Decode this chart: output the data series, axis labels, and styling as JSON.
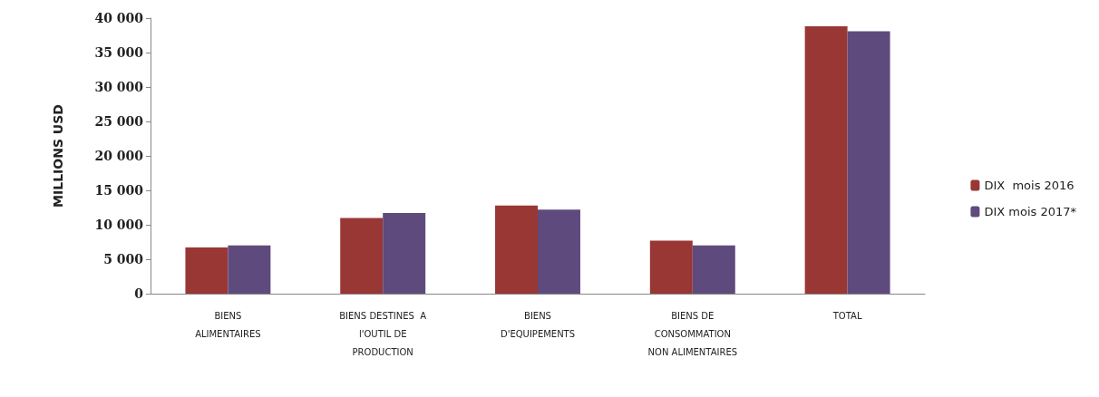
{
  "chart_data": {
    "type": "bar",
    "ylabel": "MILLIONS USD",
    "categories": [
      "BIENS\nALIMENTAIRES",
      "BIENS DESTINES  A\nl'OUTIL DE\nPRODUCTION",
      "BIENS\nD'EQUIPEMENTS",
      "BIENS DE\nCONSOMMATION\nNON ALIMENTAIRES",
      "TOTAL"
    ],
    "series": [
      {
        "name": "DIX  mois 2016",
        "color": "#993735",
        "values": [
          6700,
          11000,
          12800,
          7700,
          38800
        ]
      },
      {
        "name": "DIX mois 2017*",
        "color": "#5f4a7d",
        "values": [
          7000,
          11700,
          12200,
          7000,
          38100
        ]
      }
    ],
    "ylim": [
      0,
      40000
    ],
    "yticks": [
      0,
      5000,
      10000,
      15000,
      20000,
      25000,
      30000,
      35000,
      40000
    ],
    "grid": false,
    "legend": "right"
  }
}
